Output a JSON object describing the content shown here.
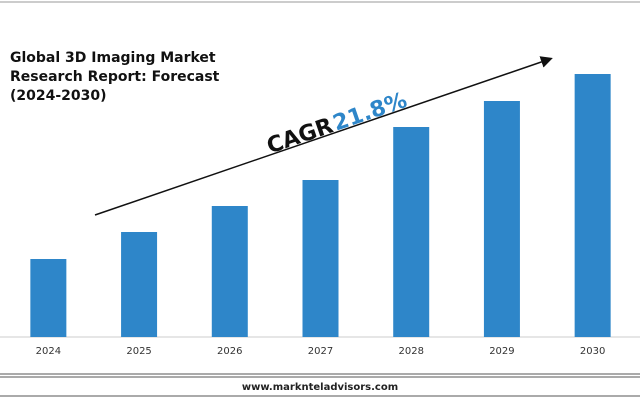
{
  "chart_data": {
    "type": "bar",
    "title_lines": [
      "Global 3D Imaging Market",
      "Research Report: Forecast",
      "(2024-2030)"
    ],
    "annotation": {
      "label": "CAGR",
      "value": "21.8%"
    },
    "categories": [
      "2024",
      "2025",
      "2026",
      "2027",
      "2028",
      "2029",
      "2030"
    ],
    "values": [
      78,
      105,
      131,
      157,
      210,
      236,
      263
    ],
    "color": "#2e86c9",
    "ylim": [
      0,
      300
    ]
  },
  "footer": "www.marknteladvisors.com"
}
